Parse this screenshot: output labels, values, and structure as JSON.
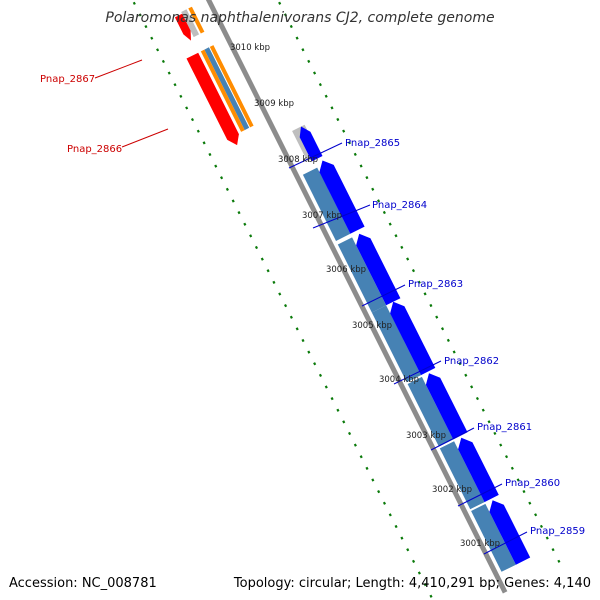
{
  "title": "Polaromonas naphthalenivorans CJ2, complete genome",
  "accession": "Accession: NC_008781",
  "topology": "Topology: circular; Length: 4,410,291 bp; Genes: 4,140",
  "colors": {
    "backbone": "#8c8c8c",
    "forward_cds": "#ff0000",
    "forward_gene": "#ff8c00",
    "reverse_cds": "#0000ff",
    "reverse_gene": "#4682b4",
    "pseudo": "#bebebe",
    "dots": "#0a7a0a",
    "label_forward": "#cc0000",
    "label_reverse": "#0000cc"
  },
  "kbp_marks": [
    {
      "label": "3010 kbp",
      "pos": 3010
    },
    {
      "label": "3009 kbp",
      "pos": 3009
    },
    {
      "label": "3008 kbp",
      "pos": 3008
    },
    {
      "label": "3007 kbp",
      "pos": 3007
    },
    {
      "label": "3006 kbp",
      "pos": 3006
    },
    {
      "label": "3005 kbp",
      "pos": 3005
    },
    {
      "label": "3004 kbp",
      "pos": 3004
    },
    {
      "label": "3003 kbp",
      "pos": 3003
    },
    {
      "label": "3002 kbp",
      "pos": 3002
    },
    {
      "label": "3001 kbp",
      "pos": 3001
    }
  ],
  "genes": [
    {
      "name": "Pnap_2867",
      "strand": "forward"
    },
    {
      "name": "Pnap_2866",
      "strand": "forward"
    },
    {
      "name": "Pnap_2865",
      "strand": "reverse"
    },
    {
      "name": "Pnap_2864",
      "strand": "reverse"
    },
    {
      "name": "Pnap_2863",
      "strand": "reverse"
    },
    {
      "name": "Pnap_2862",
      "strand": "reverse"
    },
    {
      "name": "Pnap_2861",
      "strand": "reverse"
    },
    {
      "name": "Pnap_2860",
      "strand": "reverse"
    },
    {
      "name": "Pnap_2859",
      "strand": "reverse"
    }
  ]
}
